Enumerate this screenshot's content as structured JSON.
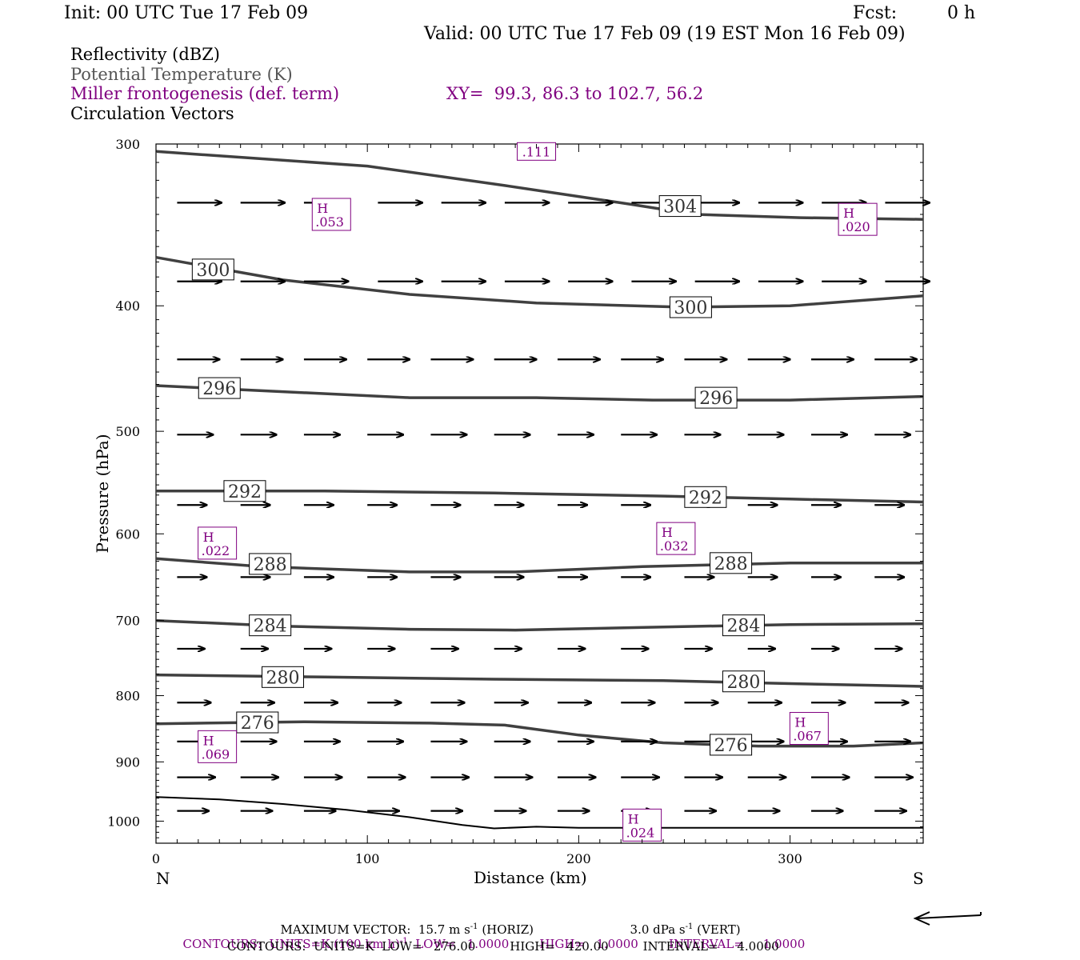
{
  "header": {
    "init": "Init: 00 UTC Tue 17 Feb 09",
    "fcst_label": "Fcst:",
    "fcst_value": "0 h",
    "valid": "Valid: 00 UTC Tue 17 Feb 09 (19 EST Mon 16 Feb 09)"
  },
  "legend": {
    "line1": "Reflectivity (dBZ)",
    "line2": "Potential Temperature (K)",
    "line3": "Miller frontogenesis (def. term)",
    "xy": "XY=  99.3, 86.3 to 102.7, 56.2",
    "line4": "Circulation Vectors"
  },
  "footer": {
    "max_vector_a": "MAXIMUM VECTOR:  15.7 m s",
    "max_vector_b": "(HORIZ)",
    "vert": "3.0 dPa s",
    "vert_b": "(VERT)",
    "contours1": "CONTOURS:  UNITS=K (100 km h)",
    "contours1_b": "LOW=   1.0000        HIGH=   1.0000        INTERVAL=     1.0000",
    "contours2": "CONTOURS:  UNITS=K  LOW=   276.00         HIGH=   420.00         INTERVAL=     4.0000"
  },
  "colors": {
    "purple": "#800080",
    "theta": "#404040",
    "vector": "#000000"
  },
  "chart_data": {
    "type": "line",
    "title": "",
    "xlabel": "Distance (km)",
    "ylabel": "Pressure (hPa)",
    "xlim": [
      0,
      363
    ],
    "ylim": [
      1040,
      300
    ],
    "y_scale": "log",
    "x_ticks": [
      "0",
      "100",
      "200",
      "300"
    ],
    "x_tick_values": [
      0,
      100,
      200,
      300
    ],
    "y_ticks": [
      "300",
      "400",
      "500",
      "600",
      "700",
      "800",
      "900",
      "1000"
    ],
    "y_tick_values": [
      300,
      400,
      500,
      600,
      700,
      800,
      900,
      1000
    ],
    "endpoints": {
      "left": "N",
      "right": "S"
    },
    "theta_contours": [
      {
        "value": 304,
        "label": "304",
        "points": [
          [
            0,
            304
          ],
          [
            100,
            312
          ],
          [
            165,
            323
          ],
          [
            225,
            334
          ],
          [
            255,
            340
          ],
          [
            305,
            342
          ],
          [
            363,
            343
          ]
        ],
        "labels_at": [
          [
            248,
            335
          ]
        ]
      },
      {
        "value": 300,
        "label": "300",
        "points": [
          [
            0,
            367
          ],
          [
            60,
            382
          ],
          [
            120,
            392
          ],
          [
            180,
            398
          ],
          [
            250,
            401
          ],
          [
            300,
            400
          ],
          [
            363,
            393
          ]
        ],
        "labels_at": [
          [
            27,
            375
          ],
          [
            253,
            401
          ]
        ]
      },
      {
        "value": 296,
        "label": "296",
        "points": [
          [
            0,
            461
          ],
          [
            60,
            466
          ],
          [
            120,
            471
          ],
          [
            180,
            471
          ],
          [
            235,
            473
          ],
          [
            300,
            473
          ],
          [
            363,
            470
          ]
        ],
        "labels_at": [
          [
            30,
            463
          ],
          [
            265,
            471
          ]
        ]
      },
      {
        "value": 292,
        "label": "292",
        "points": [
          [
            0,
            556
          ],
          [
            80,
            556
          ],
          [
            160,
            558
          ],
          [
            240,
            561
          ],
          [
            300,
            564
          ],
          [
            363,
            567
          ]
        ],
        "labels_at": [
          [
            42,
            556
          ],
          [
            260,
            562
          ]
        ]
      },
      {
        "value": 288,
        "label": "288",
        "points": [
          [
            0,
            627
          ],
          [
            50,
            636
          ],
          [
            120,
            642
          ],
          [
            170,
            642
          ],
          [
            230,
            636
          ],
          [
            300,
            632
          ],
          [
            363,
            632
          ]
        ],
        "labels_at": [
          [
            54,
            633
          ],
          [
            272,
            632
          ]
        ]
      },
      {
        "value": 284,
        "label": "284",
        "points": [
          [
            0,
            700
          ],
          [
            60,
            707
          ],
          [
            120,
            711
          ],
          [
            170,
            712
          ],
          [
            240,
            708
          ],
          [
            300,
            705
          ],
          [
            363,
            704
          ]
        ],
        "labels_at": [
          [
            54,
            706
          ],
          [
            278,
            706
          ]
        ]
      },
      {
        "value": 280,
        "label": "280",
        "points": [
          [
            0,
            771
          ],
          [
            80,
            774
          ],
          [
            160,
            777
          ],
          [
            240,
            779
          ],
          [
            300,
            783
          ],
          [
            363,
            787
          ]
        ],
        "labels_at": [
          [
            60,
            774
          ],
          [
            278,
            780
          ]
        ]
      },
      {
        "value": 276,
        "label": "276",
        "points": [
          [
            0,
            841
          ],
          [
            70,
            838
          ],
          [
            130,
            840
          ],
          [
            165,
            843
          ],
          [
            200,
            858
          ],
          [
            240,
            870
          ],
          [
            285,
            875
          ],
          [
            330,
            875
          ],
          [
            363,
            870
          ]
        ],
        "labels_at": [
          [
            48,
            839
          ],
          [
            272,
            873
          ]
        ]
      },
      {
        "value": null,
        "label": "",
        "points": [
          [
            0,
            958
          ],
          [
            30,
            962
          ],
          [
            60,
            970
          ],
          [
            90,
            980
          ],
          [
            120,
            993
          ],
          [
            145,
            1007
          ],
          [
            160,
            1013
          ],
          [
            180,
            1010
          ],
          [
            200,
            1012
          ],
          [
            240,
            1012
          ],
          [
            300,
            1012
          ],
          [
            363,
            1012
          ]
        ],
        "labels_at": []
      }
    ],
    "frontogenesis_maxima": [
      {
        "label": "H",
        "value": ".053",
        "x": 83,
        "p": 340
      },
      {
        "label": "H",
        "value": ".020",
        "x": 332,
        "p": 343
      },
      {
        "label": "",
        "value": ".111",
        "x": 180,
        "p": 304
      },
      {
        "label": "H",
        "value": ".022",
        "x": 29,
        "p": 610
      },
      {
        "label": "H",
        "value": ".032",
        "x": 246,
        "p": 605
      },
      {
        "label": "H",
        "value": ".067",
        "x": 309,
        "p": 848
      },
      {
        "label": "H",
        "value": ".069",
        "x": 29,
        "p": 876
      },
      {
        "label": "H",
        "value": ".024",
        "x": 230,
        "p": 1007
      }
    ],
    "vector_rows": [
      {
        "p": 333,
        "xs": [
          10,
          40,
          70,
          105,
          135,
          165,
          195,
          225,
          255,
          285,
          315,
          345
        ],
        "len": 21
      },
      {
        "p": 383,
        "xs": [
          10,
          40,
          70,
          105,
          135,
          165,
          195,
          225,
          255,
          285,
          315,
          345
        ],
        "len": 21
      },
      {
        "p": 440,
        "xs": [
          10,
          40,
          70,
          100,
          130,
          160,
          190,
          220,
          250,
          280,
          310,
          340
        ],
        "len": 20
      },
      {
        "p": 503,
        "xs": [
          10,
          40,
          70,
          100,
          130,
          160,
          190,
          220,
          250,
          280,
          310,
          340
        ],
        "len": 17
      },
      {
        "p": 570,
        "xs": [
          10,
          40,
          70,
          100,
          130,
          160,
          190,
          220,
          250,
          280,
          310,
          340
        ],
        "len": 14
      },
      {
        "p": 648,
        "xs": [
          10,
          40,
          70,
          100,
          130,
          160,
          190,
          220,
          250,
          280,
          310,
          340
        ],
        "len": 14
      },
      {
        "p": 736,
        "xs": [
          10,
          40,
          70,
          100,
          130,
          160,
          190,
          220,
          250,
          280,
          310,
          340
        ],
        "len": 13
      },
      {
        "p": 810,
        "xs": [
          10,
          40,
          70,
          100,
          130,
          160,
          190,
          220,
          250,
          280,
          310,
          340
        ],
        "len": 16
      },
      {
        "p": 868,
        "xs": [
          10,
          40,
          70,
          100,
          130,
          160,
          190,
          220,
          250,
          280,
          310,
          340
        ],
        "len": 17
      },
      {
        "p": 925,
        "xs": [
          10,
          40,
          70,
          100,
          130,
          160,
          190,
          220,
          250,
          280,
          310,
          340
        ],
        "len": 18
      },
      {
        "p": 982,
        "xs": [
          10,
          40,
          70,
          100,
          130,
          160,
          190,
          220,
          250,
          280,
          310,
          340
        ],
        "len": 15
      }
    ]
  }
}
